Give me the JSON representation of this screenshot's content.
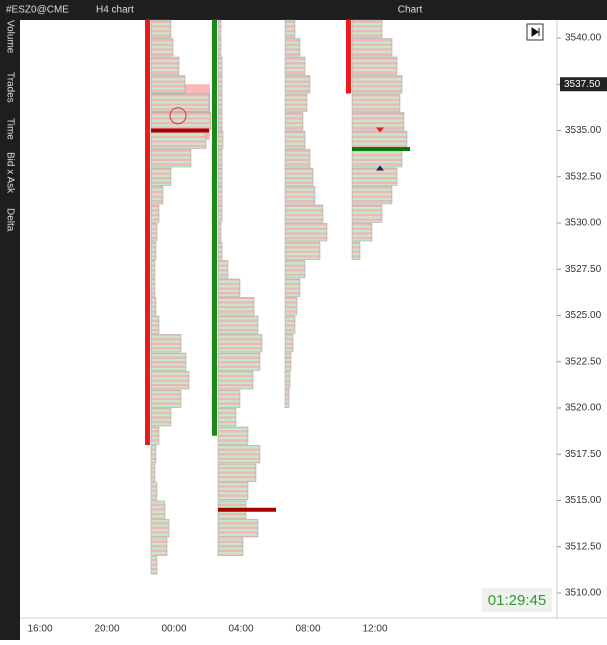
{
  "toolbar": {
    "symbol": "#ESZ0@CME",
    "timeframe": "H4 chart",
    "title": "Chart"
  },
  "side_tabs": [
    "Volume",
    "Trades",
    "Time",
    "Bid x Ask",
    "Delta"
  ],
  "price_axis": [
    {
      "value": 3540,
      "label": "3540.00"
    },
    {
      "value": 3537.5,
      "label": "3537.50"
    },
    {
      "value": 3535,
      "label": "3535.00"
    },
    {
      "value": 3532.5,
      "label": "3532.50"
    },
    {
      "value": 3530,
      "label": "3530.00"
    },
    {
      "value": 3527.5,
      "label": "3527.50"
    },
    {
      "value": 3525,
      "label": "3525.00"
    },
    {
      "value": 3522.5,
      "label": "3522.50"
    },
    {
      "value": 3520,
      "label": "3520.00"
    },
    {
      "value": 3517.5,
      "label": "3517.50"
    },
    {
      "value": 3515,
      "label": "3515.00"
    },
    {
      "value": 3512.5,
      "label": "3512.50"
    },
    {
      "value": 3510,
      "label": "3510.00"
    }
  ],
  "current_price": {
    "value": 3537.5,
    "label": "3537.50"
  },
  "time_axis": [
    "16:00",
    "20:00",
    "00:00",
    "04:00",
    "08:00",
    "12:00"
  ],
  "timer": "01:29:45",
  "profiles": [
    {
      "start": 3541,
      "volumes": [
        20,
        22,
        28,
        34,
        58,
        60,
        55,
        40,
        20,
        12,
        8,
        6,
        5,
        4,
        4,
        5,
        8,
        30,
        35,
        38,
        30,
        20,
        8,
        5,
        4,
        6,
        14,
        18,
        16,
        6
      ]
    },
    {
      "start": 3541,
      "volumes": [
        3,
        3,
        4,
        4,
        4,
        4,
        5,
        4,
        4,
        4,
        4,
        3,
        4,
        10,
        22,
        36,
        40,
        44,
        42,
        35,
        22,
        18,
        30,
        42,
        38,
        30,
        28,
        40,
        25
      ]
    },
    {
      "start": 3541,
      "volumes": [
        10,
        15,
        20,
        25,
        22,
        18,
        20,
        25,
        28,
        30,
        38,
        42,
        35,
        20,
        15,
        12,
        10,
        8,
        6,
        5,
        4
      ]
    },
    {
      "start": 3541,
      "volumes": [
        30,
        40,
        45,
        50,
        48,
        52,
        55,
        50,
        45,
        40,
        30,
        20,
        8
      ]
    }
  ]
}
